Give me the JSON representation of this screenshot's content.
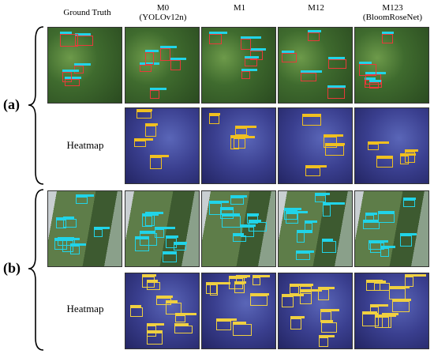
{
  "columns": [
    {
      "label": "Ground Truth"
    },
    {
      "label": "M0",
      "sublabel": "(YOLOv12n)"
    },
    {
      "label": "M1"
    },
    {
      "label": "M12"
    },
    {
      "label": "M123",
      "sublabel": "(BloomRoseNet)"
    }
  ],
  "groups": [
    {
      "label": "(a)",
      "heatmap_label": "Heatmap"
    },
    {
      "label": "(b)",
      "heatmap_label": "Heatmap"
    }
  ]
}
